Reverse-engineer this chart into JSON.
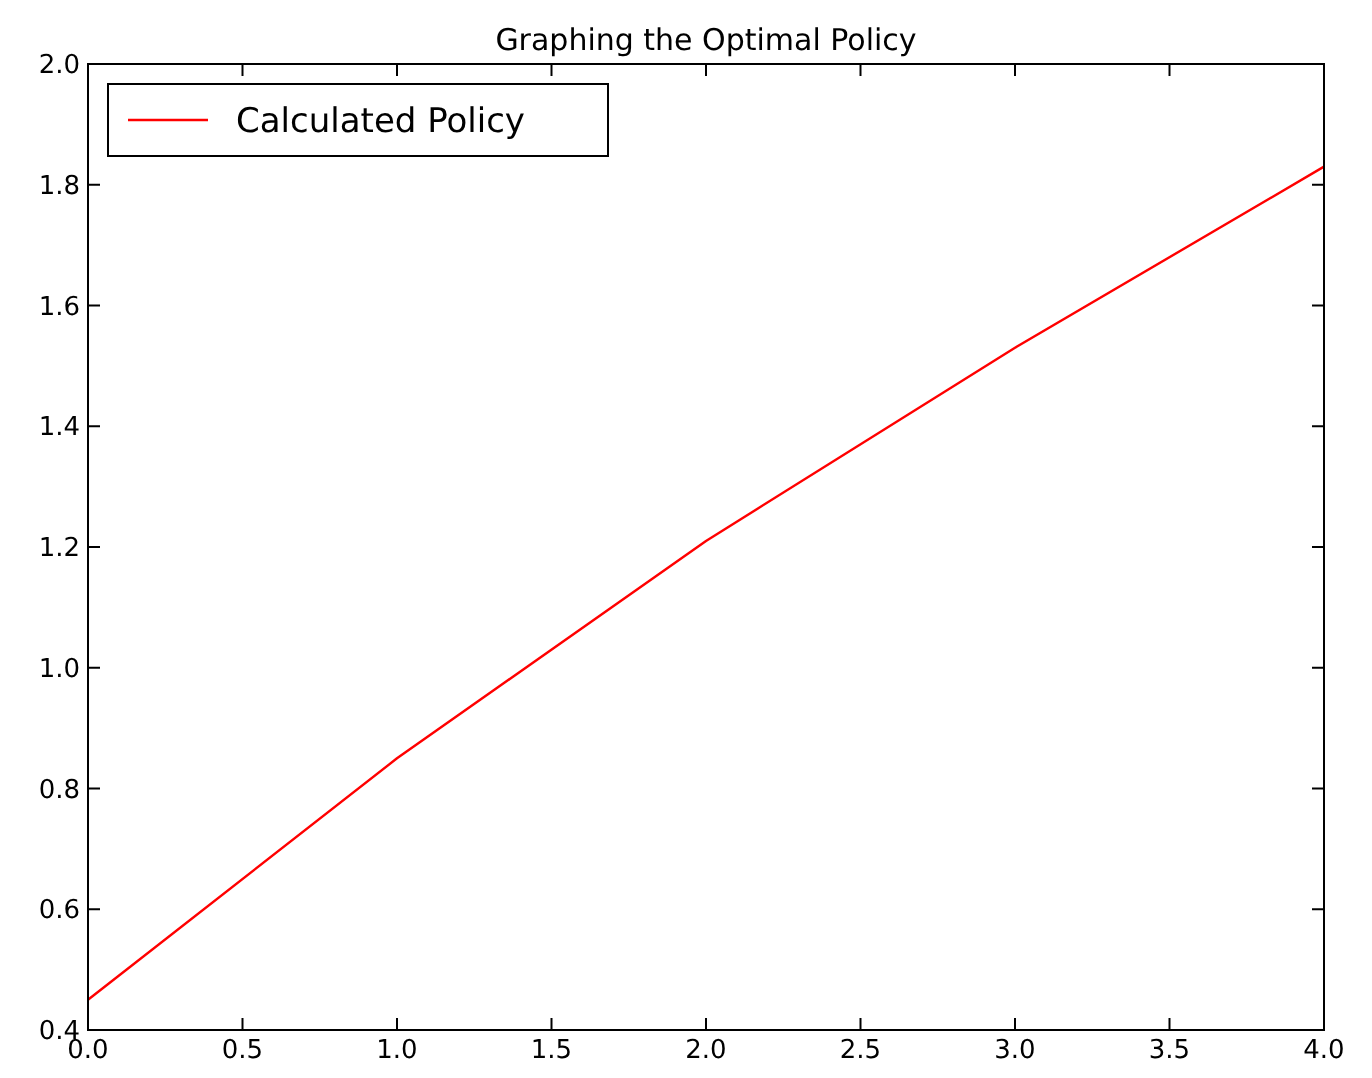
{
  "chart_data": {
    "type": "line",
    "title": "Graphing the Optimal Policy",
    "x": [
      0,
      1,
      2,
      3,
      4
    ],
    "series": [
      {
        "name": "Calculated Policy",
        "color": "#ff0000",
        "values": [
          0.45,
          0.85,
          1.21,
          1.53,
          1.83
        ]
      }
    ],
    "xlim": [
      0,
      4
    ],
    "xticks": [
      {
        "value": 0,
        "label": "0.0"
      },
      {
        "value": 0.5,
        "label": "0.5"
      },
      {
        "value": 1,
        "label": "1.0"
      },
      {
        "value": 1.5,
        "label": "1.5"
      },
      {
        "value": 2,
        "label": "2.0"
      },
      {
        "value": 2.5,
        "label": "2.5"
      },
      {
        "value": 3,
        "label": "3.0"
      },
      {
        "value": 3.5,
        "label": "3.5"
      },
      {
        "value": 4,
        "label": "4.0"
      }
    ],
    "ylim": [
      0.4,
      2.0
    ],
    "yticks": [
      {
        "value": 0.4,
        "label": "0.4"
      },
      {
        "value": 0.6,
        "label": "0.6"
      },
      {
        "value": 0.8,
        "label": "0.8"
      },
      {
        "value": 1.0,
        "label": "1.0"
      },
      {
        "value": 1.2,
        "label": "1.2"
      },
      {
        "value": 1.4,
        "label": "1.4"
      },
      {
        "value": 1.6,
        "label": "1.6"
      },
      {
        "value": 1.8,
        "label": "1.8"
      },
      {
        "value": 2.0,
        "label": "2.0"
      }
    ],
    "legend": "top left",
    "marker": "none",
    "line_style": "solid"
  }
}
